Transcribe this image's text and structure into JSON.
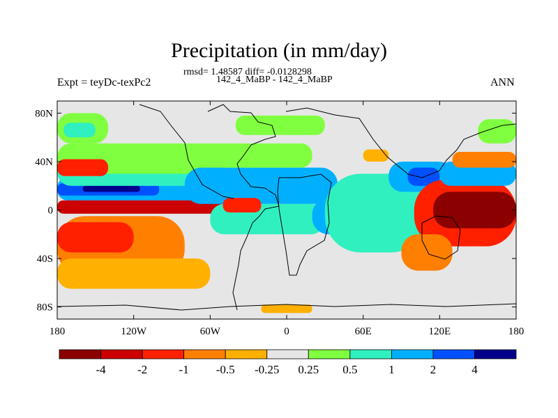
{
  "title": "Precipitation (in mm/day)",
  "subtitle_line1": "rmsd= 1.48587 diff= -0.0128298",
  "subtitle_line2": "142_4_MaBP - 142_4_MaBP",
  "left_label": "Expt = teyDc-texPc2",
  "right_label": "ANN",
  "chart_data": {
    "type": "heatmap",
    "title": "Precipitation (in mm/day)",
    "projection": "cylindrical-equidistant",
    "xlim": [
      -180,
      180
    ],
    "ylim": [
      -90,
      90
    ],
    "x_ticks": [
      {
        "value": -180,
        "label": "180"
      },
      {
        "value": -120,
        "label": "120W"
      },
      {
        "value": -60,
        "label": "60W"
      },
      {
        "value": 0,
        "label": "0"
      },
      {
        "value": 60,
        "label": "60E"
      },
      {
        "value": 120,
        "label": "120E"
      },
      {
        "value": 180,
        "label": "180"
      }
    ],
    "y_ticks": [
      {
        "value": 80,
        "label": "80N"
      },
      {
        "value": 40,
        "label": "40N"
      },
      {
        "value": 0,
        "label": "0"
      },
      {
        "value": -40,
        "label": "40S"
      },
      {
        "value": -80,
        "label": "80S"
      }
    ],
    "colorbar": {
      "labels": [
        "-4",
        "-2",
        "-1",
        "-0.5",
        "-0.25",
        "0.25",
        "0.5",
        "1",
        "2",
        "4"
      ],
      "colors": [
        "#8b0000",
        "#cc0000",
        "#ff2000",
        "#ff7f00",
        "#ffb000",
        "#e6e6e6",
        "#80ff40",
        "#30f0c0",
        "#00b0ff",
        "#0050ff",
        "#00008b"
      ]
    },
    "background_color": "#e6e6e6",
    "regions": [
      {
        "name": "w-pacific-north-band",
        "color": "#00b0ff",
        "lon": [
          -180,
          -30
        ],
        "lat": [
          8,
          27
        ]
      },
      {
        "name": "w-pacific-north-core-1",
        "color": "#0050ff",
        "lon": [
          -180,
          -100
        ],
        "lat": [
          12,
          22
        ]
      },
      {
        "name": "w-pacific-north-core-2",
        "color": "#00008b",
        "lon": [
          -160,
          -115
        ],
        "lat": [
          15,
          20
        ]
      },
      {
        "name": "north-pacific-cyan",
        "color": "#30f0c0",
        "lon": [
          -180,
          -40
        ],
        "lat": [
          20,
          45
        ]
      },
      {
        "name": "north-pacific-green",
        "color": "#80ff40",
        "lon": [
          -180,
          -40
        ],
        "lat": [
          30,
          55
        ]
      },
      {
        "name": "dateline-north-red",
        "color": "#ff2000",
        "lon": [
          -180,
          -140
        ],
        "lat": [
          28,
          42
        ]
      },
      {
        "name": "equatorial-pacific-dry",
        "color": "#cc0000",
        "lon": [
          -180,
          -40
        ],
        "lat": [
          -3,
          8
        ]
      },
      {
        "name": "south-pacific-dry",
        "color": "#ff7f00",
        "lon": [
          -180,
          -80
        ],
        "lat": [
          -55,
          -5
        ]
      },
      {
        "name": "south-pacific-dry-core",
        "color": "#ff2000",
        "lon": [
          -180,
          -120
        ],
        "lat": [
          -35,
          -10
        ]
      },
      {
        "name": "south-pacific-outer",
        "color": "#ffb000",
        "lon": [
          -180,
          -60
        ],
        "lat": [
          -65,
          -40
        ]
      },
      {
        "name": "arctic-green",
        "color": "#80ff40",
        "lon": [
          -180,
          -140
        ],
        "lat": [
          55,
          80
        ]
      },
      {
        "name": "arctic-cyan",
        "color": "#30f0c0",
        "lon": [
          -175,
          -150
        ],
        "lat": [
          60,
          72
        ]
      },
      {
        "name": "atlantic-wet-north",
        "color": "#00b0ff",
        "lon": [
          -80,
          40
        ],
        "lat": [
          5,
          35
        ]
      },
      {
        "name": "atlantic-wet-south",
        "color": "#30f0c0",
        "lon": [
          -60,
          30
        ],
        "lat": [
          -20,
          5
        ]
      },
      {
        "name": "atlantic-itcz-dry",
        "color": "#ff2000",
        "lon": [
          -50,
          -20
        ],
        "lat": [
          -2,
          10
        ]
      },
      {
        "name": "north-atlantic-green",
        "color": "#80ff40",
        "lon": [
          -60,
          20
        ],
        "lat": [
          35,
          55
        ]
      },
      {
        "name": "eurasia-north-green",
        "color": "#80ff40",
        "lon": [
          -40,
          30
        ],
        "lat": [
          62,
          78
        ]
      },
      {
        "name": "east-africa-wet",
        "color": "#00b0ff",
        "lon": [
          20,
          60
        ],
        "lat": [
          -20,
          10
        ]
      },
      {
        "name": "indian-ocean-wet",
        "color": "#0050ff",
        "lon": [
          40,
          100
        ],
        "lat": [
          -12,
          0
        ]
      },
      {
        "name": "indian-ocean-cyan",
        "color": "#30f0c0",
        "lon": [
          30,
          110
        ],
        "lat": [
          -35,
          30
        ]
      },
      {
        "name": "asia-wet",
        "color": "#00b0ff",
        "lon": [
          80,
          130
        ],
        "lat": [
          15,
          40
        ]
      },
      {
        "name": "asia-wet-core",
        "color": "#0050ff",
        "lon": [
          95,
          120
        ],
        "lat": [
          20,
          35
        ]
      },
      {
        "name": "central-asia-dry",
        "color": "#ffb000",
        "lon": [
          60,
          80
        ],
        "lat": [
          40,
          50
        ]
      },
      {
        "name": "w-pacific-warm-pool-dry",
        "color": "#ff2000",
        "lon": [
          100,
          180
        ],
        "lat": [
          -30,
          25
        ]
      },
      {
        "name": "w-pacific-warm-pool-core",
        "color": "#8b0000",
        "lon": [
          115,
          180
        ],
        "lat": [
          -15,
          15
        ]
      },
      {
        "name": "e-indian-dry",
        "color": "#ff7f00",
        "lon": [
          90,
          130
        ],
        "lat": [
          -50,
          -20
        ]
      },
      {
        "name": "east-pacific-north-wet",
        "color": "#00b0ff",
        "lon": [
          120,
          180
        ],
        "lat": [
          20,
          40
        ]
      },
      {
        "name": "nw-pacific-dry",
        "color": "#ff7f00",
        "lon": [
          130,
          180
        ],
        "lat": [
          35,
          48
        ]
      },
      {
        "name": "pacific-north-green",
        "color": "#80ff40",
        "lon": [
          150,
          180
        ],
        "lat": [
          55,
          75
        ]
      },
      {
        "name": "antarctic-dry",
        "color": "#ffb000",
        "lon": [
          -20,
          20
        ],
        "lat": [
          -85,
          -78
        ]
      }
    ]
  }
}
